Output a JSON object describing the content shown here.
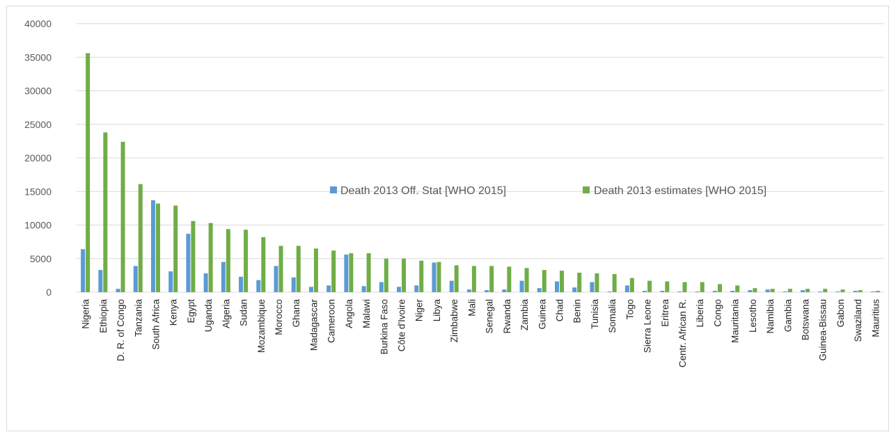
{
  "chart_data": {
    "type": "bar",
    "title": "",
    "xlabel": "",
    "ylabel": "",
    "ylim": [
      0,
      40000
    ],
    "yticks": [
      0,
      5000,
      10000,
      15000,
      20000,
      25000,
      30000,
      35000,
      40000
    ],
    "grid": true,
    "legend_position": "center-right",
    "categories": [
      "Nigeria",
      "Ethiopia",
      "D. R. of Congo",
      "Tanzania",
      "South Africa",
      "Kenya",
      "Egypt",
      "Uganda",
      "Algeria",
      "Sudan",
      "Mozambique",
      "Morocco",
      "Ghana",
      "Madagascar",
      "Cameroon",
      "Angola",
      "Malawi",
      "Burkina Faso",
      "Côte d'Ivoire",
      "Niger",
      "Libya",
      "Zimbabwe",
      "Mali",
      "Senegal",
      "Rwanda",
      "Zambia",
      "Guinea",
      "Chad",
      "Benin",
      "Tunisia",
      "Somalia",
      "Togo",
      "Sierra Leone",
      "Eritrea",
      "Centr. African R.",
      "Liberia",
      "Congo",
      "Mauritania",
      "Lesotho",
      "Namibia",
      "Gambia",
      "Botswana",
      "Guinea-Bissau",
      "Gabon",
      "Swaziland",
      "Mauritius"
    ],
    "series": [
      {
        "name": "Death 2013 Off. Stat [WHO 2015]",
        "color": "#5b9bd5",
        "values": [
          6400,
          3300,
          500,
          3900,
          13700,
          3100,
          8700,
          2800,
          4500,
          2300,
          1800,
          3900,
          2200,
          800,
          1000,
          5600,
          900,
          1500,
          800,
          1000,
          4400,
          1700,
          400,
          300,
          400,
          1700,
          600,
          1600,
          700,
          1500,
          100,
          1000,
          200,
          200,
          100,
          100,
          200,
          200,
          300,
          400,
          100,
          300,
          100,
          100,
          200,
          100
        ]
      },
      {
        "name": "Death 2013 estimates [WHO 2015]",
        "color": "#70ad47",
        "values": [
          35600,
          23800,
          22400,
          16100,
          13200,
          12900,
          10600,
          10300,
          9400,
          9300,
          8200,
          6900,
          6900,
          6500,
          6200,
          5800,
          5800,
          5000,
          5000,
          4700,
          4500,
          4000,
          3900,
          3900,
          3800,
          3600,
          3300,
          3200,
          2900,
          2800,
          2700,
          2100,
          1700,
          1600,
          1500,
          1500,
          1200,
          1000,
          600,
          500,
          500,
          500,
          500,
          400,
          300,
          200
        ]
      }
    ]
  }
}
